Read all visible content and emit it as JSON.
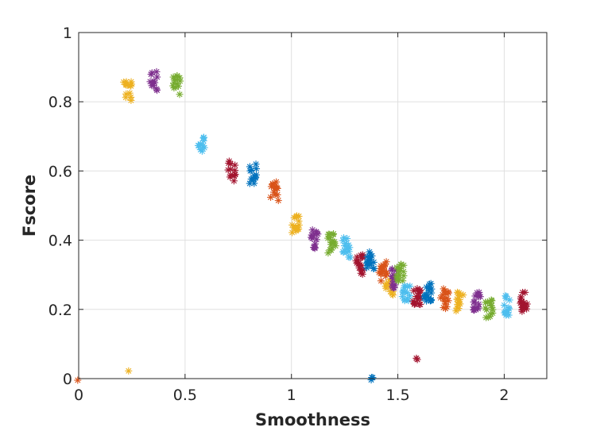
{
  "chart_data": {
    "type": "scatter",
    "title": "",
    "xlabel": "Smoothness",
    "ylabel": "Fscore",
    "xlim": [
      0,
      2.2
    ],
    "ylim": [
      0,
      1
    ],
    "grid": true,
    "marker": "asterisk",
    "xticks": [
      0,
      0.5,
      1,
      1.5,
      2
    ],
    "xtick_labels": [
      "0",
      "0.5",
      "1",
      "1.5",
      "2"
    ],
    "yticks": [
      0,
      0.2,
      0.4,
      0.6,
      0.8,
      1
    ],
    "ytick_labels": [
      "0",
      "0.2",
      "0.4",
      "0.6",
      "0.8",
      "1"
    ],
    "clusters": [
      {
        "color": "#D95319",
        "x": 0.0,
        "y": 0.0,
        "n": 1
      },
      {
        "color": "#EDB120",
        "x": 0.23,
        "y": 0.83,
        "n": 14
      },
      {
        "color": "#EDB120",
        "x": 0.23,
        "y": 0.02,
        "n": 1
      },
      {
        "color": "#7E2F8E",
        "x": 0.35,
        "y": 0.86,
        "n": 12
      },
      {
        "color": "#77AC30",
        "x": 0.46,
        "y": 0.85,
        "n": 14
      },
      {
        "color": "#4DBEEE",
        "x": 0.58,
        "y": 0.67,
        "n": 12
      },
      {
        "color": "#A2142F",
        "x": 0.72,
        "y": 0.6,
        "n": 14
      },
      {
        "color": "#0072BD",
        "x": 0.82,
        "y": 0.59,
        "n": 14
      },
      {
        "color": "#D95319",
        "x": 0.92,
        "y": 0.54,
        "n": 14
      },
      {
        "color": "#EDB120",
        "x": 1.02,
        "y": 0.45,
        "n": 16
      },
      {
        "color": "#7E2F8E",
        "x": 1.11,
        "y": 0.4,
        "n": 14
      },
      {
        "color": "#77AC30",
        "x": 1.19,
        "y": 0.39,
        "n": 16
      },
      {
        "color": "#4DBEEE",
        "x": 1.26,
        "y": 0.38,
        "n": 16
      },
      {
        "color": "#A2142F",
        "x": 1.32,
        "y": 0.33,
        "n": 18
      },
      {
        "color": "#0072BD",
        "x": 1.37,
        "y": 0.34,
        "n": 18
      },
      {
        "color": "#0072BD",
        "x": 1.38,
        "y": 0.0,
        "n": 3
      },
      {
        "color": "#D95319",
        "x": 1.43,
        "y": 0.31,
        "n": 16
      },
      {
        "color": "#EDB120",
        "x": 1.46,
        "y": 0.26,
        "n": 14
      },
      {
        "color": "#7E2F8E",
        "x": 1.49,
        "y": 0.29,
        "n": 14
      },
      {
        "color": "#77AC30",
        "x": 1.51,
        "y": 0.31,
        "n": 16
      },
      {
        "color": "#4DBEEE",
        "x": 1.54,
        "y": 0.25,
        "n": 14
      },
      {
        "color": "#A2142F",
        "x": 1.59,
        "y": 0.24,
        "n": 18
      },
      {
        "color": "#A2142F",
        "x": 1.59,
        "y": 0.06,
        "n": 2
      },
      {
        "color": "#0072BD",
        "x": 1.64,
        "y": 0.25,
        "n": 18
      },
      {
        "color": "#D95319",
        "x": 1.72,
        "y": 0.23,
        "n": 16
      },
      {
        "color": "#EDB120",
        "x": 1.79,
        "y": 0.22,
        "n": 16
      },
      {
        "color": "#7E2F8E",
        "x": 1.87,
        "y": 0.22,
        "n": 16
      },
      {
        "color": "#77AC30",
        "x": 1.93,
        "y": 0.2,
        "n": 16
      },
      {
        "color": "#4DBEEE",
        "x": 2.01,
        "y": 0.21,
        "n": 14
      },
      {
        "color": "#A2142F",
        "x": 2.09,
        "y": 0.22,
        "n": 18
      }
    ]
  }
}
